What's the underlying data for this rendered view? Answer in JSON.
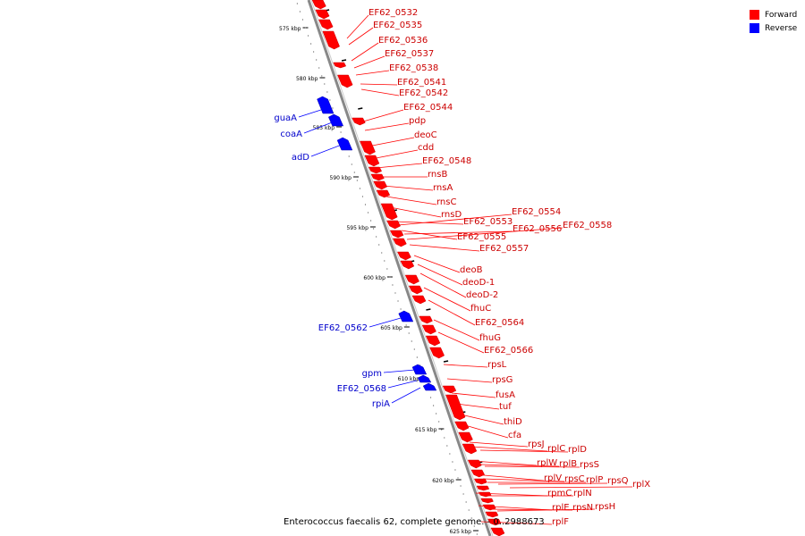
{
  "legend": {
    "items": [
      {
        "label": "Forward",
        "color": "#ff0000"
      },
      {
        "label": "Reverse",
        "color": "#0000ff"
      }
    ]
  },
  "caption": "Enterococcus faecalis 62, complete genome. - 0..2988673",
  "ruler": {
    "ticks": [
      "575 kbp",
      "580 kbp",
      "585 kbp",
      "590 kbp",
      "595 kbp",
      "600 kbp",
      "605 kbp",
      "610 kbp",
      "615 kbp",
      "620 kbp",
      "625 kbp"
    ]
  },
  "genes": {
    "forward": [
      "EF62_0532",
      "EF62_0535",
      "EF62_0536",
      "EF62_0537",
      "EF62_0538",
      "EF62_0541",
      "EF62_0542",
      "EF62_0544",
      "pdp",
      "deoC",
      "cdd",
      "EF62_0548",
      "rnsB",
      "rnsA",
      "rnsC",
      "rnsD",
      "EF62_0553",
      "EF62_0554",
      "EF62_0555",
      "EF62_0556",
      "EF62_0558",
      "EF62_0557",
      "deoB",
      "deoD-1",
      "deoD-2",
      "fhuC",
      "EF62_0564",
      "fhuG",
      "EF62_0566",
      "rpsL",
      "rpsG",
      "fusA",
      "tuf",
      "thiD",
      "cfa",
      "rpsJ",
      "rplC",
      "rplD",
      "rplW",
      "rplB",
      "rpsS",
      "rplV",
      "rpsC",
      "rplP",
      "rpsQ",
      "rplX",
      "rpmC",
      "rplN",
      "rplE",
      "rpsN",
      "rpsH",
      "rplF"
    ],
    "reverse": [
      "guaA",
      "coaA",
      "adD",
      "EF62_0562",
      "gpm",
      "EF62_0568",
      "rpiA"
    ]
  }
}
